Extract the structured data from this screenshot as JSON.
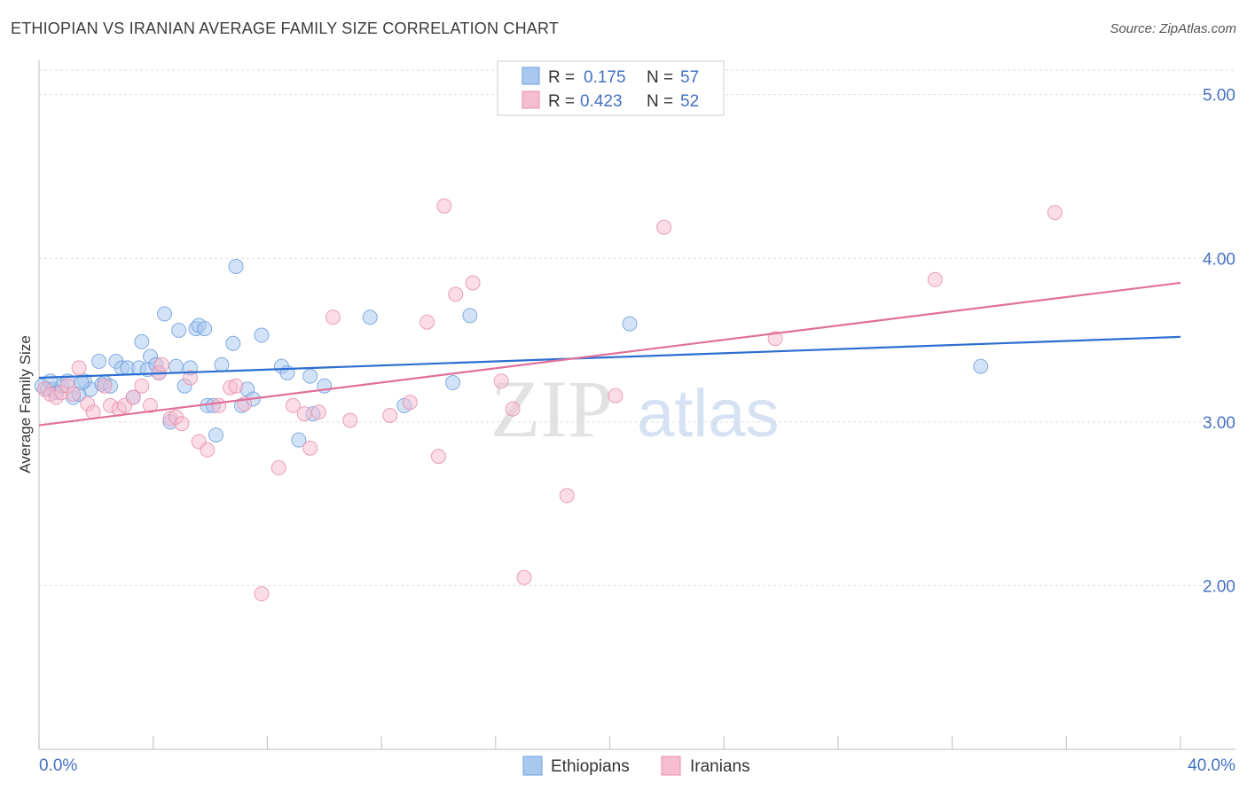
{
  "title": "ETHIOPIAN VS IRANIAN AVERAGE FAMILY SIZE CORRELATION CHART",
  "source": "Source: ZipAtlas.com",
  "watermark": {
    "zip": "ZIP",
    "atlas": "atlas"
  },
  "colors": {
    "blue_fill": "#a8c8f0",
    "blue_stroke": "#6f9fdc",
    "blue_line": "#2a6ed0",
    "pink_fill": "#f6bcd0",
    "pink_stroke": "#e98fae",
    "pink_line": "#e0709a",
    "label_blue": "#4472c4",
    "grid": "#dddddd"
  },
  "legend": {
    "rows": [
      {
        "r_label": "R = ",
        "r_value": "0.175",
        "n_label": "N = ",
        "n_value": "57"
      },
      {
        "r_label": "R = ",
        "r_value": "0.423",
        "n_label": "N = ",
        "n_value": "52"
      }
    ],
    "bottom": [
      "Ethiopians",
      "Iranians"
    ]
  },
  "chart_data": {
    "type": "scatter",
    "title": "ETHIOPIAN VS IRANIAN AVERAGE FAMILY SIZE CORRELATION CHART",
    "xlabel": "",
    "ylabel": "Average Family Size",
    "xlim": [
      0,
      40
    ],
    "ylim": [
      1.0,
      5.15
    ],
    "x_tick_labels": [
      "0.0%",
      "40.0%"
    ],
    "y_ticks": [
      2.0,
      3.0,
      4.0,
      5.0
    ],
    "y_tick_labels": [
      "2.00",
      "3.00",
      "4.00",
      "5.00"
    ],
    "grid": true,
    "series": [
      {
        "name": "Ethiopians",
        "r": 0.175,
        "n": 57,
        "trend": {
          "x": [
            0,
            40
          ],
          "y": [
            3.27,
            3.52
          ]
        },
        "points": [
          [
            0.1,
            3.22
          ],
          [
            0.3,
            3.2
          ],
          [
            0.5,
            3.2
          ],
          [
            0.6,
            3.18
          ],
          [
            0.8,
            3.22
          ],
          [
            1.0,
            3.25
          ],
          [
            1.2,
            3.15
          ],
          [
            1.4,
            3.17
          ],
          [
            1.6,
            3.25
          ],
          [
            1.8,
            3.2
          ],
          [
            2.1,
            3.37
          ],
          [
            2.2,
            3.23
          ],
          [
            2.3,
            3.24
          ],
          [
            2.5,
            3.22
          ],
          [
            2.7,
            3.37
          ],
          [
            2.9,
            3.33
          ],
          [
            3.1,
            3.33
          ],
          [
            3.3,
            3.15
          ],
          [
            3.5,
            3.33
          ],
          [
            3.6,
            3.49
          ],
          [
            3.8,
            3.32
          ],
          [
            3.9,
            3.4
          ],
          [
            4.1,
            3.35
          ],
          [
            4.2,
            3.3
          ],
          [
            4.4,
            3.66
          ],
          [
            4.6,
            3.0
          ],
          [
            4.8,
            3.34
          ],
          [
            4.9,
            3.56
          ],
          [
            5.1,
            3.22
          ],
          [
            5.3,
            3.33
          ],
          [
            5.5,
            3.57
          ],
          [
            5.6,
            3.59
          ],
          [
            5.8,
            3.57
          ],
          [
            5.9,
            3.1
          ],
          [
            6.1,
            3.1
          ],
          [
            6.2,
            2.92
          ],
          [
            6.4,
            3.35
          ],
          [
            6.8,
            3.48
          ],
          [
            6.9,
            3.95
          ],
          [
            7.1,
            3.1
          ],
          [
            7.3,
            3.2
          ],
          [
            7.5,
            3.14
          ],
          [
            7.8,
            3.53
          ],
          [
            8.5,
            3.34
          ],
          [
            8.7,
            3.3
          ],
          [
            9.1,
            2.89
          ],
          [
            9.5,
            3.28
          ],
          [
            9.6,
            3.05
          ],
          [
            10.0,
            3.22
          ],
          [
            11.6,
            3.64
          ],
          [
            12.8,
            3.1
          ],
          [
            14.5,
            3.24
          ],
          [
            15.1,
            3.65
          ],
          [
            20.7,
            3.6
          ],
          [
            33.0,
            3.34
          ],
          [
            0.4,
            3.25
          ],
          [
            1.5,
            3.24
          ]
        ]
      },
      {
        "name": "Iranians",
        "r": 0.423,
        "n": 52,
        "trend": {
          "x": [
            0,
            40
          ],
          "y": [
            2.98,
            3.85
          ]
        },
        "points": [
          [
            0.2,
            3.2
          ],
          [
            0.4,
            3.17
          ],
          [
            0.6,
            3.15
          ],
          [
            0.8,
            3.18
          ],
          [
            1.0,
            3.22
          ],
          [
            1.2,
            3.17
          ],
          [
            1.4,
            3.33
          ],
          [
            1.7,
            3.11
          ],
          [
            1.9,
            3.06
          ],
          [
            2.3,
            3.22
          ],
          [
            2.5,
            3.1
          ],
          [
            2.8,
            3.08
          ],
          [
            3.0,
            3.1
          ],
          [
            3.3,
            3.15
          ],
          [
            3.6,
            3.22
          ],
          [
            3.9,
            3.1
          ],
          [
            4.2,
            3.3
          ],
          [
            4.3,
            3.35
          ],
          [
            4.6,
            3.02
          ],
          [
            4.8,
            3.03
          ],
          [
            5.0,
            2.99
          ],
          [
            5.3,
            3.27
          ],
          [
            5.6,
            2.88
          ],
          [
            5.9,
            2.83
          ],
          [
            6.3,
            3.1
          ],
          [
            6.7,
            3.21
          ],
          [
            6.9,
            3.22
          ],
          [
            7.2,
            3.11
          ],
          [
            7.8,
            1.95
          ],
          [
            8.4,
            2.72
          ],
          [
            8.9,
            3.1
          ],
          [
            9.3,
            3.05
          ],
          [
            9.5,
            2.84
          ],
          [
            9.8,
            3.06
          ],
          [
            10.3,
            3.64
          ],
          [
            10.9,
            3.01
          ],
          [
            12.3,
            3.04
          ],
          [
            13.0,
            3.12
          ],
          [
            13.6,
            3.61
          ],
          [
            14.0,
            2.79
          ],
          [
            14.2,
            4.32
          ],
          [
            14.6,
            3.78
          ],
          [
            15.2,
            3.85
          ],
          [
            16.2,
            3.25
          ],
          [
            16.6,
            3.08
          ],
          [
            17.0,
            2.05
          ],
          [
            18.5,
            2.55
          ],
          [
            20.2,
            3.16
          ],
          [
            21.9,
            4.19
          ],
          [
            25.8,
            3.51
          ],
          [
            31.4,
            3.87
          ],
          [
            35.6,
            4.28
          ]
        ]
      }
    ]
  }
}
